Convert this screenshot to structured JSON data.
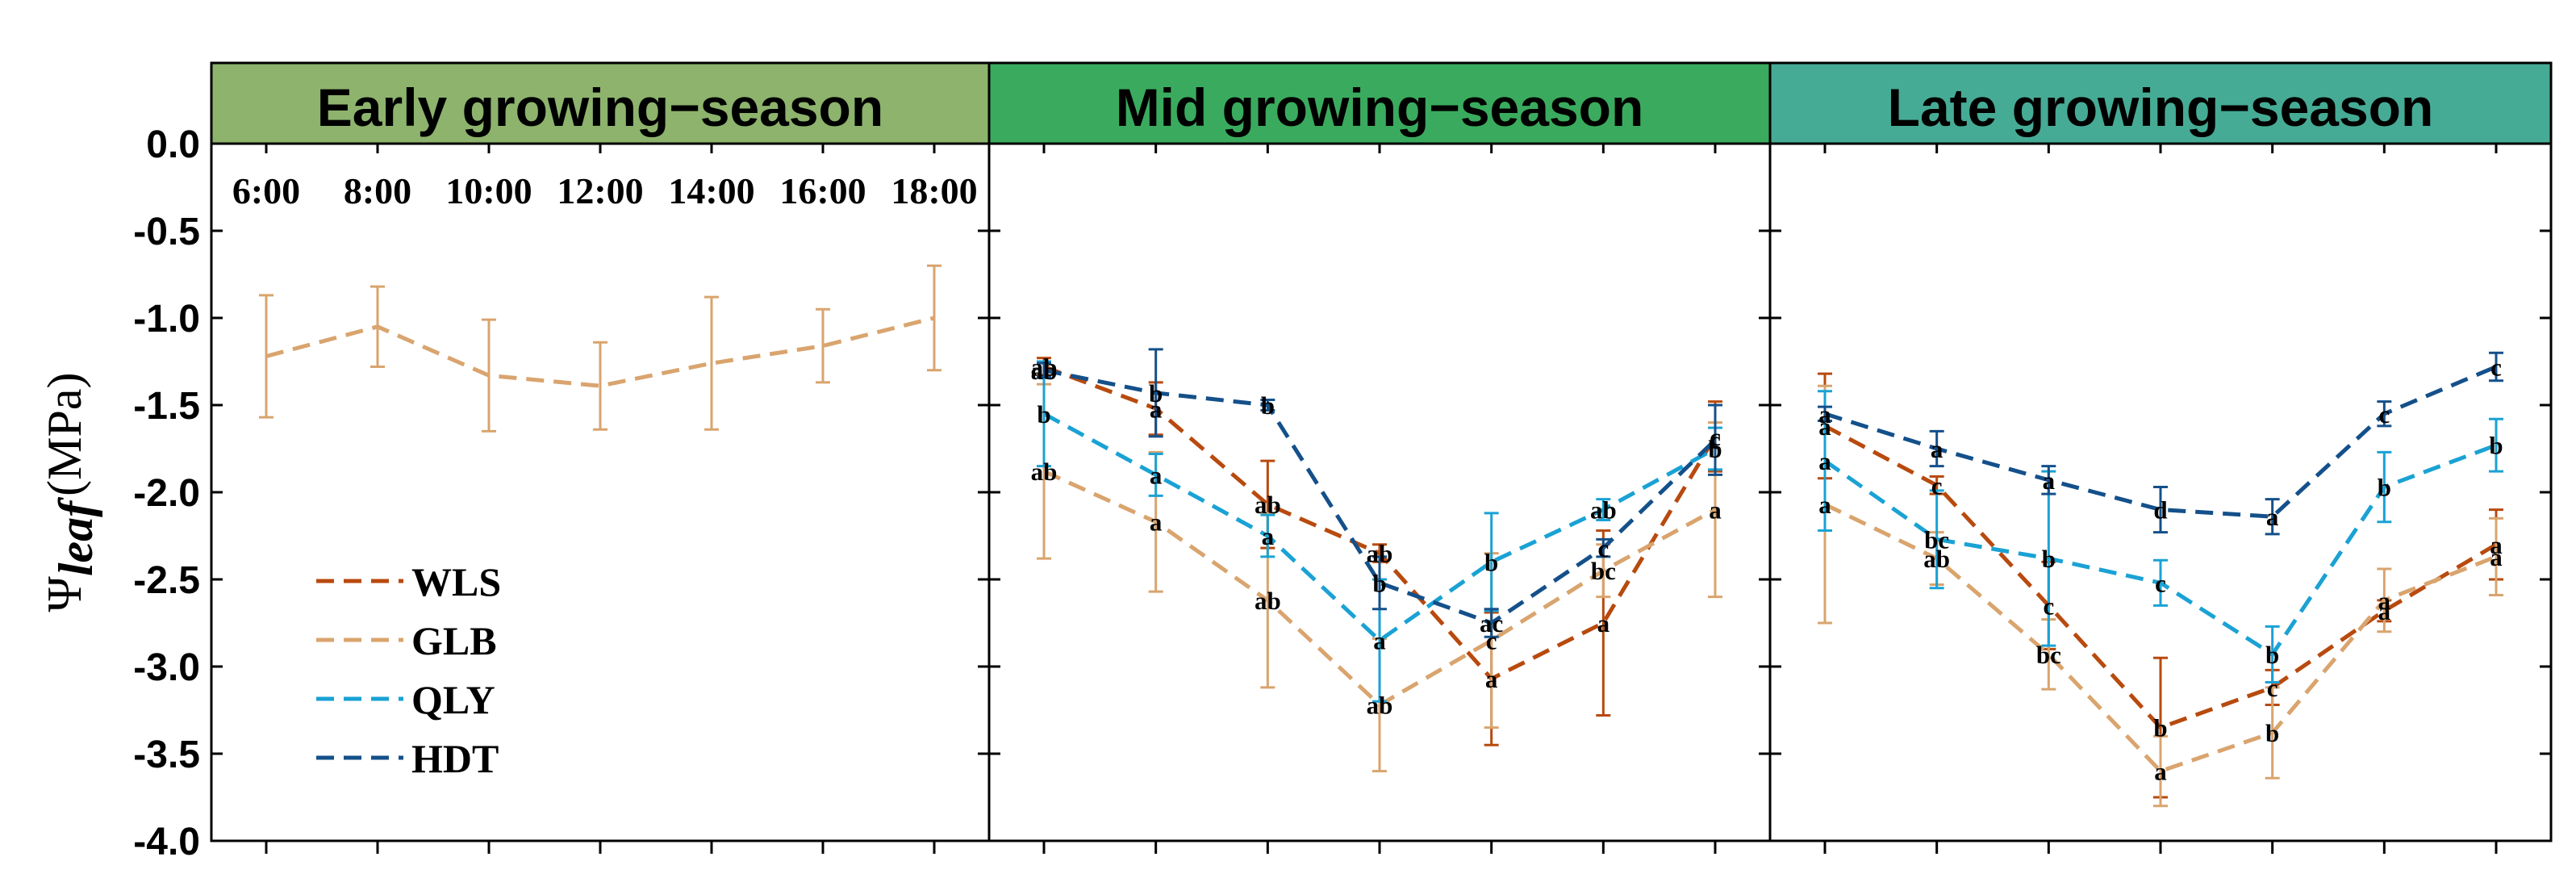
{
  "chart_data": {
    "type": "line",
    "ylabel_prefix": "Ψ",
    "ylabel_sub": "leaf",
    "ylabel_unit": "(MPa)",
    "ylim": [
      -4.0,
      0.0
    ],
    "yticks": [
      "0.0",
      "-0.5",
      "-1.0",
      "-1.5",
      "-2.0",
      "-2.5",
      "-3.0",
      "-3.5",
      "-4.0"
    ],
    "ytick_values": [
      0.0,
      -0.5,
      -1.0,
      -1.5,
      -2.0,
      -2.5,
      -3.0,
      -3.5,
      -4.0
    ],
    "categories": [
      "6:00",
      "8:00",
      "10:00",
      "12:00",
      "14:00",
      "16:00",
      "18:00"
    ],
    "legend_placement": "lower-left of first panel",
    "colors": {
      "WLS": "#b84a0e",
      "GLB": "#d9a46e",
      "QLY": "#1aa2d4",
      "HDT": "#14508a"
    },
    "panels": [
      {
        "title": "Early growing−season",
        "header_color": "#8db36d",
        "series": [
          {
            "name": "GLB",
            "values": [
              -1.22,
              -1.05,
              -1.33,
              -1.39,
              -1.26,
              -1.16,
              -1.0
            ],
            "errors": [
              0.35,
              0.23,
              0.32,
              0.25,
              0.38,
              0.21,
              0.3
            ],
            "labels": [
              "",
              "",
              "",
              "",
              "",
              "",
              ""
            ]
          }
        ]
      },
      {
        "title": "Mid growing−season",
        "header_color": "#3aab5e",
        "series": [
          {
            "name": "WLS",
            "values": [
              -1.28,
              -1.52,
              -2.07,
              -2.35,
              -3.07,
              -2.75,
              -1.68
            ],
            "errors": [
              0.05,
              0.15,
              0.25,
              0.05,
              0.38,
              0.53,
              0.2
            ],
            "labels": [
              "ab",
              "a",
              "ab",
              "ab",
              "a",
              "a",
              "c"
            ]
          },
          {
            "name": "GLB",
            "values": [
              -1.88,
              -2.17,
              -2.62,
              -3.22,
              -2.85,
              -2.45,
              -2.1
            ],
            "errors": [
              0.5,
              0.4,
              0.5,
              0.38,
              0.5,
              0.15,
              0.5
            ],
            "labels": [
              "ab",
              "a",
              "ab",
              "ab",
              "c",
              "bc",
              "a"
            ]
          },
          {
            "name": "QLY",
            "values": [
              -1.55,
              -1.9,
              -2.25,
              -2.85,
              -2.4,
              -2.1,
              -1.75
            ],
            "errors": [
              0.3,
              0.12,
              0.12,
              0.35,
              0.28,
              0.06,
              0.12
            ],
            "labels": [
              "b",
              "a",
              "a",
              "a",
              "b",
              "ab",
              "b"
            ]
          },
          {
            "name": "HDT",
            "values": [
              -1.3,
              -1.43,
              -1.5,
              -2.52,
              -2.75,
              -2.32,
              -1.7
            ],
            "errors": [
              0.04,
              0.25,
              0.03,
              0.15,
              0.08,
              0.05,
              0.2
            ],
            "labels": [
              "ab",
              "b",
              "b",
              "b",
              "ac",
              "c",
              "c"
            ]
          }
        ]
      },
      {
        "title": "Late growing−season",
        "header_color": "#46ab95",
        "series": [
          {
            "name": "WLS",
            "values": [
              -1.62,
              -1.96,
              -2.65,
              -3.35,
              -3.12,
              -2.68,
              -2.3
            ],
            "errors": [
              0.3,
              0.05,
              0.25,
              0.4,
              0.1,
              0.06,
              0.2
            ],
            "labels": [
              "a",
              "c",
              "c",
              "b",
              "c",
              "a",
              "a"
            ]
          },
          {
            "name": "GLB",
            "values": [
              -2.07,
              -2.38,
              -2.93,
              -3.6,
              -3.38,
              -2.62,
              -2.37
            ],
            "errors": [
              0.68,
              0.15,
              0.2,
              0.2,
              0.26,
              0.18,
              0.22
            ],
            "labels": [
              "a",
              "ab",
              "bc",
              "a",
              "b",
              "a",
              "a"
            ]
          },
          {
            "name": "QLY",
            "values": [
              -1.82,
              -2.27,
              -2.38,
              -2.52,
              -2.93,
              -1.97,
              -1.73
            ],
            "errors": [
              0.4,
              0.28,
              0.5,
              0.13,
              0.16,
              0.2,
              0.15
            ],
            "labels": [
              "a",
              "bc",
              "b",
              "c",
              "b",
              "b",
              "b"
            ]
          },
          {
            "name": "HDT",
            "values": [
              -1.55,
              -1.75,
              -1.93,
              -2.1,
              -2.14,
              -1.55,
              -1.28
            ],
            "errors": [
              0.04,
              0.1,
              0.08,
              0.13,
              0.1,
              0.07,
              0.08
            ],
            "labels": [
              "a",
              "a",
              "a",
              "d",
              "a",
              "c",
              "c"
            ]
          }
        ]
      }
    ]
  }
}
